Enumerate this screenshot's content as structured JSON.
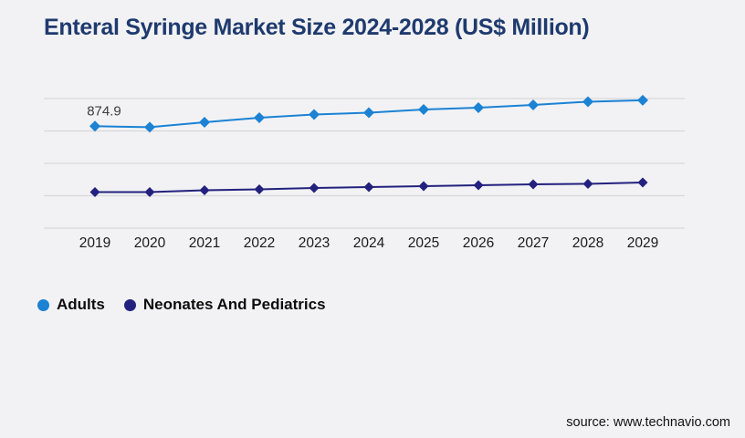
{
  "title": "Enteral Syringe Market Size 2024-2028 (US$ Million)",
  "source_note": "source: www.technavio.com",
  "colors": {
    "background": "#f2f2f4",
    "title": "#1e3a6e",
    "gridline": "#d8d8da",
    "adults": "#1b82d4",
    "neonates": "#23217e",
    "data_label": "#3d3d3d",
    "axis_text": "#1a1a1a"
  },
  "chart_data": {
    "type": "line",
    "title": "Enteral Syringe Market Size 2024-2028 (US$ Million)",
    "x": [
      2019,
      2020,
      2021,
      2022,
      2023,
      2024,
      2025,
      2026,
      2027,
      2028,
      2029
    ],
    "series": [
      {
        "name": "Adults",
        "color_key": "adults",
        "marker": "diamond",
        "values": [
          874.9,
          866,
          908,
          948,
          975,
          991,
          1018,
          1034,
          1057,
          1085,
          1097
        ]
      },
      {
        "name": "Neonates And Pediatrics",
        "color_key": "neonates",
        "marker": "diamond",
        "values": [
          309,
          309,
          325,
          333,
          345,
          352,
          360,
          368,
          376,
          380,
          392
        ]
      }
    ],
    "data_labels": [
      {
        "series": "Adults",
        "x": 2019,
        "text": "874.9"
      }
    ],
    "xlabel": "",
    "ylabel": "",
    "ylim": [
      0,
      1112
    ],
    "y_axis_visible": false,
    "grid": "horizontal",
    "gridline_count": 5,
    "legend_position": "bottom-left"
  }
}
